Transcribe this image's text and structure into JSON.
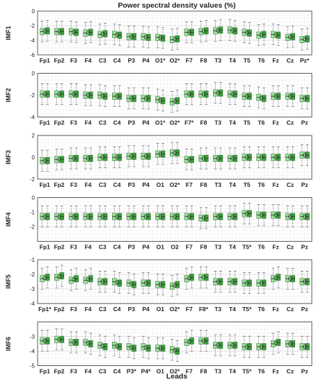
{
  "chart_data": {
    "type": "boxplot",
    "title": "Power spectral density values (%)",
    "xlabel": "Leads",
    "legend": "none",
    "grid": true,
    "colors": {
      "light": "#9be09a",
      "dark": "#3a9e3a",
      "median": "#1a3a1a",
      "whisker": "#555555",
      "mean_marker": "#333333"
    },
    "panels": [
      {
        "name": "IMF1",
        "ylim": [
          -6,
          0
        ],
        "yticks": [
          -6,
          -4,
          -2,
          0
        ],
        "leads": [
          "Fp1",
          "Fp2",
          "F3",
          "F4",
          "C3",
          "C4",
          "P3",
          "P4",
          "O1*",
          "O2*",
          "F7",
          "F8",
          "T3",
          "T4",
          "T5",
          "T6",
          "Fz",
          "Cz",
          "Pz*"
        ],
        "medians": [
          [
            -2.8,
            -2.7
          ],
          [
            -2.8,
            -2.8
          ],
          [
            -2.8,
            -2.9
          ],
          [
            -3.0,
            -2.9
          ],
          [
            -3.2,
            -3.1
          ],
          [
            -3.2,
            -3.3
          ],
          [
            -3.5,
            -3.5
          ],
          [
            -3.5,
            -3.6
          ],
          [
            -3.6,
            -3.7
          ],
          [
            -3.9,
            -3.8
          ],
          [
            -2.9,
            -2.9
          ],
          [
            -2.8,
            -2.7
          ],
          [
            -2.7,
            -2.6
          ],
          [
            -2.6,
            -2.7
          ],
          [
            -2.9,
            -3.0
          ],
          [
            -3.3,
            -3.2
          ],
          [
            -3.2,
            -3.3
          ],
          [
            -3.6,
            -3.5
          ],
          [
            -3.9,
            -3.8
          ]
        ]
      },
      {
        "name": "IMF2",
        "ylim": [
          -4,
          0
        ],
        "yticks": [
          -4,
          -2,
          0
        ],
        "leads": [
          "Fp1",
          "Fp2",
          "F3",
          "F4",
          "C3",
          "C4",
          "P3",
          "P4",
          "O1*",
          "O2*",
          "F7*",
          "F8",
          "T3",
          "T4",
          "T5",
          "T6",
          "Fz",
          "Cz",
          "Pz"
        ],
        "medians": [
          [
            -1.9,
            -1.9
          ],
          [
            -1.9,
            -1.9
          ],
          [
            -1.9,
            -1.9
          ],
          [
            -2.0,
            -2.0
          ],
          [
            -2.0,
            -2.1
          ],
          [
            -2.1,
            -2.1
          ],
          [
            -2.3,
            -2.3
          ],
          [
            -2.3,
            -2.3
          ],
          [
            -2.4,
            -2.5
          ],
          [
            -2.6,
            -2.5
          ],
          [
            -1.9,
            -1.9
          ],
          [
            -1.9,
            -1.9
          ],
          [
            -1.8,
            -1.8
          ],
          [
            -1.9,
            -1.9
          ],
          [
            -2.1,
            -2.1
          ],
          [
            -2.2,
            -2.3
          ],
          [
            -2.1,
            -2.1
          ],
          [
            -2.1,
            -2.1
          ],
          [
            -2.3,
            -2.3
          ]
        ]
      },
      {
        "name": "IMF3",
        "ylim": [
          -2,
          2
        ],
        "yticks": [
          -2,
          0,
          2
        ],
        "leads": [
          "Fp1",
          "Fp2",
          "F3",
          "F4",
          "C3",
          "C4",
          "P3",
          "P4",
          "O1",
          "O2*",
          "F7",
          "F8",
          "T3",
          "T4",
          "T5",
          "T6",
          "Fz",
          "Cz",
          "Pz"
        ],
        "medians": [
          [
            -0.3,
            -0.3
          ],
          [
            -0.2,
            -0.2
          ],
          [
            -0.1,
            -0.1
          ],
          [
            -0.1,
            -0.1
          ],
          [
            0.0,
            0.0
          ],
          [
            0.0,
            0.0
          ],
          [
            0.1,
            0.1
          ],
          [
            0.1,
            0.1
          ],
          [
            0.3,
            0.3
          ],
          [
            0.4,
            0.4
          ],
          [
            -0.2,
            -0.2
          ],
          [
            -0.1,
            -0.1
          ],
          [
            -0.1,
            -0.1
          ],
          [
            -0.1,
            -0.1
          ],
          [
            0.0,
            0.0
          ],
          [
            0.0,
            0.0
          ],
          [
            0.0,
            0.0
          ],
          [
            0.0,
            0.0
          ],
          [
            0.2,
            0.2
          ]
        ]
      },
      {
        "name": "IMF4",
        "ylim": [
          -3,
          0
        ],
        "yticks": [
          -2,
          -1,
          0
        ],
        "leads": [
          "Fp1",
          "Fp2",
          "F3",
          "F4",
          "C3",
          "C4",
          "P3",
          "P4",
          "O1",
          "O2",
          "F7",
          "F8",
          "T3",
          "T4",
          "T5*",
          "T6",
          "Fz",
          "Cz",
          "Pz"
        ],
        "medians": [
          [
            -1.3,
            -1.3
          ],
          [
            -1.3,
            -1.3
          ],
          [
            -1.3,
            -1.3
          ],
          [
            -1.3,
            -1.3
          ],
          [
            -1.3,
            -1.3
          ],
          [
            -1.3,
            -1.3
          ],
          [
            -1.3,
            -1.3
          ],
          [
            -1.3,
            -1.3
          ],
          [
            -1.3,
            -1.3
          ],
          [
            -1.3,
            -1.3
          ],
          [
            -1.3,
            -1.3
          ],
          [
            -1.4,
            -1.4
          ],
          [
            -1.3,
            -1.3
          ],
          [
            -1.3,
            -1.3
          ],
          [
            -1.1,
            -1.1
          ],
          [
            -1.2,
            -1.2
          ],
          [
            -1.2,
            -1.2
          ],
          [
            -1.3,
            -1.3
          ],
          [
            -1.3,
            -1.3
          ]
        ]
      },
      {
        "name": "IMF5",
        "ylim": [
          -4,
          -1
        ],
        "yticks": [
          -4,
          -3,
          -2,
          -1
        ],
        "leads": [
          "Fp1*",
          "Fp2",
          "F3",
          "F4",
          "C3",
          "C4",
          "P3",
          "P4",
          "O1",
          "O2*",
          "F7",
          "F8*",
          "T3",
          "T4",
          "T5*",
          "T6",
          "Fz",
          "Cz",
          "Pz"
        ],
        "medians": [
          [
            -2.3,
            -2.2
          ],
          [
            -2.2,
            -2.1
          ],
          [
            -2.4,
            -2.3
          ],
          [
            -2.4,
            -2.3
          ],
          [
            -2.5,
            -2.5
          ],
          [
            -2.5,
            -2.6
          ],
          [
            -2.6,
            -2.7
          ],
          [
            -2.6,
            -2.6
          ],
          [
            -2.7,
            -2.7
          ],
          [
            -2.8,
            -2.7
          ],
          [
            -2.3,
            -2.2
          ],
          [
            -2.2,
            -2.2
          ],
          [
            -2.5,
            -2.5
          ],
          [
            -2.5,
            -2.5
          ],
          [
            -2.6,
            -2.6
          ],
          [
            -2.6,
            -2.6
          ],
          [
            -2.3,
            -2.2
          ],
          [
            -2.3,
            -2.3
          ],
          [
            -2.5,
            -2.5
          ]
        ]
      },
      {
        "name": "IMF6",
        "ylim": [
          -5,
          -2
        ],
        "yticks": [
          -5,
          -4,
          -3
        ],
        "leads": [
          "Fp1",
          "Fp2",
          "F3",
          "F4",
          "C3",
          "C4",
          "P3*",
          "P4*",
          "O1",
          "O2*",
          "F7",
          "F8",
          "T3",
          "T4",
          "T5*",
          "T6",
          "Fz",
          "Cz",
          "Pz"
        ],
        "medians": [
          [
            -3.3,
            -3.3
          ],
          [
            -3.2,
            -3.2
          ],
          [
            -3.4,
            -3.4
          ],
          [
            -3.4,
            -3.5
          ],
          [
            -3.6,
            -3.7
          ],
          [
            -3.6,
            -3.7
          ],
          [
            -3.7,
            -3.8
          ],
          [
            -3.7,
            -3.8
          ],
          [
            -3.8,
            -3.8
          ],
          [
            -3.9,
            -4.0
          ],
          [
            -3.4,
            -3.3
          ],
          [
            -3.3,
            -3.3
          ],
          [
            -3.6,
            -3.6
          ],
          [
            -3.6,
            -3.6
          ],
          [
            -3.7,
            -3.7
          ],
          [
            -3.7,
            -3.7
          ],
          [
            -3.5,
            -3.4
          ],
          [
            -3.5,
            -3.5
          ],
          [
            -3.7,
            -3.7
          ]
        ]
      }
    ]
  }
}
